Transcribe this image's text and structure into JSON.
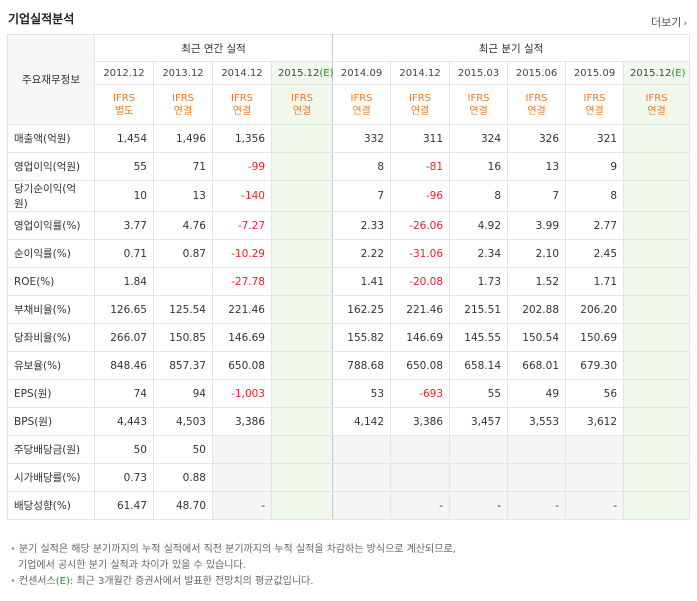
{
  "title": "기업실적분석",
  "more": "더보기",
  "header": {
    "row_label": "주요재무정보",
    "annual_title": "최근 연간 실적",
    "quarter_title": "최근 분기 실적"
  },
  "columns": [
    {
      "period": "2012.12",
      "ifrs1": "IFRS",
      "ifrs2": "별도",
      "est": false,
      "mark": ""
    },
    {
      "period": "2013.12",
      "ifrs1": "IFRS",
      "ifrs2": "연결",
      "est": false,
      "mark": ""
    },
    {
      "period": "2014.12",
      "ifrs1": "IFRS",
      "ifrs2": "연결",
      "est": false,
      "mark": ""
    },
    {
      "period": "2015.12",
      "ifrs1": "IFRS",
      "ifrs2": "연결",
      "est": true,
      "mark": "(E)"
    },
    {
      "period": "2014.09",
      "ifrs1": "IFRS",
      "ifrs2": "연결",
      "est": false,
      "mark": ""
    },
    {
      "period": "2014.12",
      "ifrs1": "IFRS",
      "ifrs2": "연결",
      "est": false,
      "mark": ""
    },
    {
      "period": "2015.03",
      "ifrs1": "IFRS",
      "ifrs2": "연결",
      "est": false,
      "mark": ""
    },
    {
      "period": "2015.06",
      "ifrs1": "IFRS",
      "ifrs2": "연결",
      "est": false,
      "mark": ""
    },
    {
      "period": "2015.09",
      "ifrs1": "IFRS",
      "ifrs2": "연결",
      "est": false,
      "mark": ""
    },
    {
      "period": "2015.12",
      "ifrs1": "IFRS",
      "ifrs2": "연결",
      "est": true,
      "mark": "(E)"
    }
  ],
  "rows": [
    {
      "label": "매출액(억원)",
      "group_start": true,
      "values": [
        "1,454",
        "1,496",
        "1,356",
        "",
        "332",
        "311",
        "324",
        "326",
        "321",
        ""
      ]
    },
    {
      "label": "영업이익(억원)",
      "values": [
        "55",
        "71",
        "-99",
        "",
        "8",
        "-81",
        "16",
        "13",
        "9",
        ""
      ]
    },
    {
      "label": "당기순이익(억원)",
      "values": [
        "10",
        "13",
        "-140",
        "",
        "7",
        "-96",
        "8",
        "7",
        "8",
        ""
      ]
    },
    {
      "label": "영업이익률(%)",
      "group_start": true,
      "values": [
        "3.77",
        "4.76",
        "-7.27",
        "",
        "2.33",
        "-26.06",
        "4.92",
        "3.99",
        "2.77",
        ""
      ]
    },
    {
      "label": "순이익률(%)",
      "values": [
        "0.71",
        "0.87",
        "-10.29",
        "",
        "2.22",
        "-31.06",
        "2.34",
        "2.10",
        "2.45",
        ""
      ]
    },
    {
      "label": "ROE(%)",
      "values": [
        "1.84",
        "",
        "-27.78",
        "",
        "1.41",
        "-20.08",
        "1.73",
        "1.52",
        "1.71",
        ""
      ]
    },
    {
      "label": "부채비율(%)",
      "group_start": true,
      "values": [
        "126.65",
        "125.54",
        "221.46",
        "",
        "162.25",
        "221.46",
        "215.51",
        "202.88",
        "206.20",
        ""
      ]
    },
    {
      "label": "당좌비율(%)",
      "values": [
        "266.07",
        "150.85",
        "146.69",
        "",
        "155.82",
        "146.69",
        "145.55",
        "150.54",
        "150.69",
        ""
      ]
    },
    {
      "label": "유보율(%)",
      "values": [
        "848.46",
        "857.37",
        "650.08",
        "",
        "788.68",
        "650.08",
        "658.14",
        "668.01",
        "679.30",
        ""
      ]
    },
    {
      "label": "EPS(원)",
      "group_start": true,
      "values": [
        "74",
        "94",
        "-1,003",
        "",
        "53",
        "-693",
        "55",
        "49",
        "56",
        ""
      ]
    },
    {
      "label": "BPS(원)",
      "values": [
        "4,443",
        "4,503",
        "3,386",
        "",
        "4,142",
        "3,386",
        "3,457",
        "3,553",
        "3,612",
        ""
      ]
    },
    {
      "label": "주당배당금(원)",
      "group_start": true,
      "grey": true,
      "values": [
        "50",
        "50",
        "",
        "",
        "",
        "",
        "",
        "",
        "",
        ""
      ]
    },
    {
      "label": "시가배당률(%)",
      "grey": true,
      "values": [
        "0.73",
        "0.88",
        "",
        "",
        "",
        "",
        "",
        "",
        "",
        ""
      ]
    },
    {
      "label": "배당성향(%)",
      "grey": true,
      "values": [
        "61.47",
        "48.70",
        "-",
        "",
        "",
        "-",
        "-",
        "-",
        "-",
        ""
      ]
    }
  ],
  "notes": {
    "line1": "분기 실적은 해당 분기까지의 누적 실적에서 직전 분기까지의 누적 실적을 차감하는 방식으로 계산되므로,",
    "line2": "기업에서 공시한 분기 실적과 차이가 있을 수 있습니다.",
    "line3_prefix": "컨센서스",
    "line3_mark": "(E)",
    "line3_text": ": 최근 3개월간 증권사에서 발표한 전망치의 평균값입니다."
  },
  "colors": {
    "negative": "#e8232b",
    "ifrs": "#f07a1e",
    "estimate_bg": "#f1f9ec",
    "estimate_text": "#2f8c2f"
  }
}
